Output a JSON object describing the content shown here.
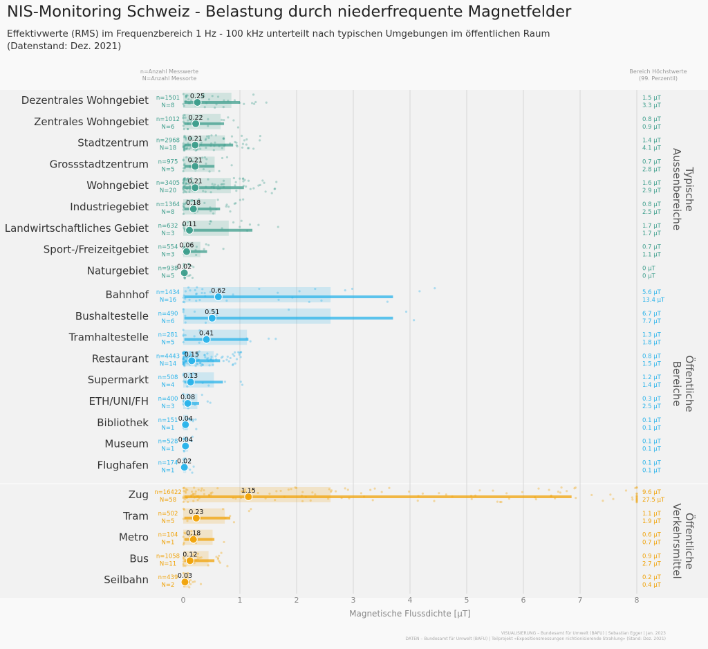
{
  "title": "NIS-Monitoring Schweiz - Belastung durch niederfrequente Magnetfelder",
  "subtitle": "Effektivwerte (RMS) im Frequenzbereich 1 Hz - 100 kHz unterteilt nach typischen Umgebungen im öffentlichen Raum",
  "subtitle2": "(Datenstand: Dez. 2021)",
  "legend_left": [
    "n=Anzahl Messwerte",
    "N=Anzahl Messorte"
  ],
  "legend_right": [
    "Bereich Höchstwerte",
    "(99. Perzentil)"
  ],
  "credits": [
    "VISUALISIERUNG – Bundesamt für Umwelt (BAFU) | Sebastian Egger | Jan. 2023",
    "DATEN – Bundesamt für Umwelt (BAFU) | Teilprojekt «Expositionsmessungen nichtionisierende Strahlung» (Stand: Dez. 2021)"
  ],
  "chart_data": {
    "type": "scatter",
    "xlabel": "Magnetische Flussdichte [µT]",
    "xlim": [
      0,
      8
    ],
    "xticks": [
      0,
      1,
      2,
      3,
      4,
      5,
      6,
      7,
      8
    ],
    "groups": [
      {
        "name": "Typische Aussenbereiche",
        "name_lines": [
          "Typische",
          "Aussenbereiche"
        ],
        "color": "#3d9e8c",
        "rows": [
          {
            "label": "Dezentrales Wohngebiet",
            "n": "n=1501",
            "N": "N=8",
            "median": 0.25,
            "p99": [
              1.0
            ],
            "pmax": 1.0,
            "high1": "1.5 µT",
            "high2": "3.3 µT"
          },
          {
            "label": "Zentrales Wohngebiet",
            "n": "n=1012",
            "N": "N=6",
            "median": 0.22,
            "pmax": 0.72,
            "high1": "0.8 µT",
            "high2": "0.9 µT"
          },
          {
            "label": "Stadtzentrum",
            "n": "n=2968",
            "N": "N=18",
            "median": 0.21,
            "pmax": 0.88,
            "high1": "1.4 µT",
            "high2": "4.1 µT"
          },
          {
            "label": "Grossstadtzentrum",
            "n": "n=975",
            "N": "N=5",
            "median": 0.21,
            "pmax": 0.55,
            "high1": "0.7 µT",
            "high2": "2.8 µT"
          },
          {
            "label": "Wohngebiet",
            "n": "n=3405",
            "N": "N=20",
            "median": 0.21,
            "pmax": 1.07,
            "high1": "1.6 µT",
            "high2": "2.9 µT"
          },
          {
            "label": "Industriegebiet",
            "n": "n=1364",
            "N": "N=8",
            "median": 0.18,
            "pmax": 0.65,
            "high1": "0.8 µT",
            "high2": "2.5 µT"
          },
          {
            "label": "Landwirtschaftliches Gebiet",
            "n": "n=632",
            "N": "N=3",
            "median": 0.11,
            "pmax": 1.22,
            "high1": "1.7 µT",
            "high2": "1.7 µT"
          },
          {
            "label": "Sport-/Freizeitgebiet",
            "n": "n=554",
            "N": "N=3",
            "median": 0.06,
            "pmax": 0.42,
            "high1": "0.7 µT",
            "high2": "1.1 µT"
          },
          {
            "label": "Naturgebiet",
            "n": "n=938",
            "N": "N=5",
            "median": 0.02,
            "pmax": 0.03,
            "high1": "0 µT",
            "high2": "0 µT"
          }
        ]
      },
      {
        "name": "Öffentliche Bereiche",
        "name_lines": [
          "Öffentliche",
          "Bereiche"
        ],
        "color": "#29b3ea",
        "rows": [
          {
            "label": "Bahnhof",
            "n": "n=1434",
            "N": "N=16",
            "median": 0.62,
            "pmax": 3.7,
            "high1": "5.6 µT",
            "high2": "13.4 µT"
          },
          {
            "label": "Bushaltestelle",
            "n": "n=490",
            "N": "N=6",
            "median": 0.51,
            "pmax": 3.7,
            "high1": "6.7 µT",
            "high2": "7.7 µT"
          },
          {
            "label": "Tramhaltestelle",
            "n": "n=281",
            "N": "N=5",
            "median": 0.41,
            "pmax": 1.15,
            "high1": "1.3 µT",
            "high2": "1.8 µT"
          },
          {
            "label": "Restaurant",
            "n": "n=4443",
            "N": "N=14",
            "median": 0.15,
            "pmax": 0.65,
            "high1": "0.8 µT",
            "high2": "1.5 µT"
          },
          {
            "label": "Supermarkt",
            "n": "n=508",
            "N": "N=4",
            "median": 0.13,
            "pmax": 0.7,
            "high1": "1.2 µT",
            "high2": "1.4 µT"
          },
          {
            "label": "ETH/UNI/FH",
            "n": "n=400",
            "N": "N=3",
            "median": 0.08,
            "pmax": 0.28,
            "high1": "0.3 µT",
            "high2": "2.5 µT"
          },
          {
            "label": "Bibliothek",
            "n": "n=151",
            "N": "N=1",
            "median": 0.04,
            "pmax": 0.07,
            "high1": "0.1 µT",
            "high2": "0.1 µT"
          },
          {
            "label": "Museum",
            "n": "n=528",
            "N": "N=1",
            "median": 0.04,
            "pmax": 0.07,
            "high1": "0.1 µT",
            "high2": "0.1 µT"
          },
          {
            "label": "Flughafen",
            "n": "n=174",
            "N": "N=1",
            "median": 0.02,
            "pmax": 0.05,
            "high1": "0.1 µT",
            "high2": "0.1 µT"
          }
        ]
      },
      {
        "name": "Öffentliche Verkehrsmittel",
        "name_lines": [
          "Öffentliche",
          "Verkehrsmittel"
        ],
        "color": "#f0a30a",
        "rows": [
          {
            "label": "Zug",
            "n": "n=16422",
            "N": "N=58",
            "median": 1.15,
            "pmax": 6.85,
            "high1": "9.6 µT",
            "high2": "27.5 µT"
          },
          {
            "label": "Tram",
            "n": "n=502",
            "N": "N=5",
            "median": 0.23,
            "pmax": 0.83,
            "high1": "1.1 µT",
            "high2": "1.9 µT"
          },
          {
            "label": "Metro",
            "n": "n=104",
            "N": "N=1",
            "median": 0.18,
            "pmax": 0.55,
            "high1": "0.6 µT",
            "high2": "0.7 µT"
          },
          {
            "label": "Bus",
            "n": "n=1058",
            "N": "N=11",
            "median": 0.12,
            "pmax": 0.55,
            "high1": "0.9 µT",
            "high2": "2.7 µT"
          },
          {
            "label": "Seilbahn",
            "n": "n=439",
            "N": "N=2",
            "median": 0.03,
            "pmax": 0.12,
            "high1": "0.2 µT",
            "high2": "0.4 µT"
          }
        ]
      }
    ]
  }
}
